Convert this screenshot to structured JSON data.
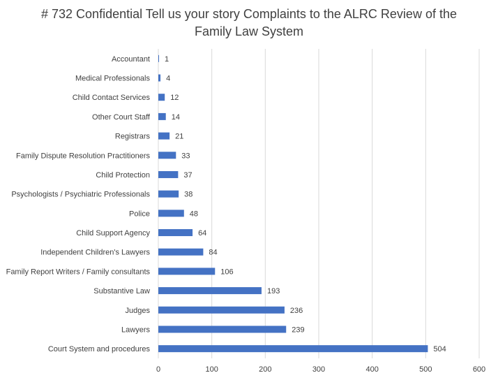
{
  "chart_data": {
    "type": "bar",
    "orientation": "horizontal",
    "title_lines": [
      "# 732 Confidential Tell us your story Complaints to the ALRC Review of the",
      "Family Law System"
    ],
    "categories": [
      "Accountant",
      "Medical Professionals",
      "Child Contact Services",
      "Other Court Staff",
      "Registrars",
      "Family Dispute Resolution Practitioners",
      "Child Protection",
      "Psychologists / Psychiatric Professionals",
      "Police",
      "Child Support Agency",
      "Independent Children's Lawyers",
      "Family Report Writers / Family consultants",
      "Substantive Law",
      "Judges",
      "Lawyers",
      "Court System and procedures"
    ],
    "values": [
      1,
      4,
      12,
      14,
      21,
      33,
      37,
      38,
      48,
      64,
      84,
      106,
      193,
      236,
      239,
      504
    ],
    "xlim": [
      0,
      600
    ],
    "xticks": [
      0,
      100,
      200,
      300,
      400,
      500,
      600
    ],
    "xlabel": "",
    "ylabel": "",
    "grid": "vertical",
    "legend": "none",
    "data_labels": true,
    "bar_color": "#4472C4",
    "grid_color": "#D9D9D9",
    "text_color": "#404040"
  }
}
